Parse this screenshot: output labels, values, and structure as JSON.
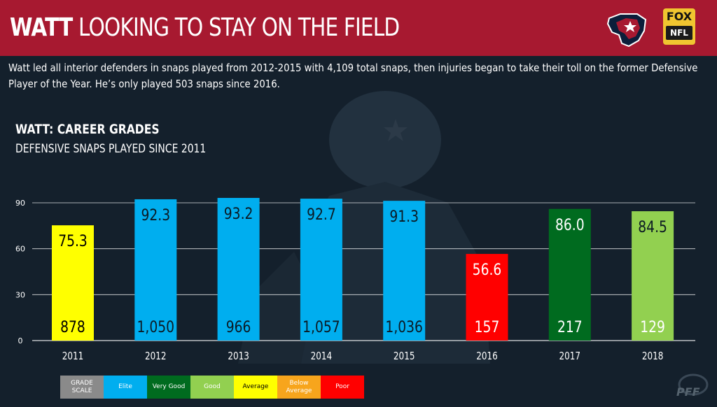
{
  "header": {
    "title_bold": "WATT",
    "title_rest": "LOOKING TO STAY ON THE FIELD",
    "subtitle": "Watt led all interior defenders in snaps played from 2012-2015 with 4,109 total snaps, then injuries began to take their toll on the former Defensive Player of the Year. He’s only played 503 snaps since 2016.",
    "network_logo_top": "FOX",
    "network_logo_bottom": "NFL"
  },
  "chart_data": {
    "type": "bar",
    "title": "WATT: CAREER GRADES",
    "subtitle": "DEFENSIVE SNAPS PLAYED SINCE 2011",
    "categories": [
      "2011",
      "2012",
      "2013",
      "2014",
      "2015",
      "2016",
      "2017",
      "2018"
    ],
    "values": [
      75.3,
      92.3,
      93.2,
      92.7,
      91.3,
      56.6,
      86.0,
      84.5
    ],
    "value_labels": [
      "75.3",
      "92.3",
      "93.2",
      "92.7",
      "91.3",
      "56.6",
      "86.0",
      "84.5"
    ],
    "snaps": [
      "878",
      "1,050",
      "966",
      "1,057",
      "1,036",
      "157",
      "217",
      "129"
    ],
    "bar_colors": [
      "#ffff00",
      "#00aeef",
      "#00aeef",
      "#00aeef",
      "#00aeef",
      "#ff0000",
      "#006b1f",
      "#92d050"
    ],
    "yticks": [
      0,
      30,
      60,
      90
    ],
    "ylim": [
      0,
      95
    ],
    "grid": true
  },
  "legend": [
    {
      "label": "GRADE SCALE",
      "color": "#8a8a8a",
      "text_color": "#ffffff"
    },
    {
      "label": "Elite",
      "color": "#00aeef",
      "text_color": "#ffffff"
    },
    {
      "label": "Very Good",
      "color": "#006b1f",
      "text_color": "#ffffff"
    },
    {
      "label": "Good",
      "color": "#92d050",
      "text_color": "#ffffff"
    },
    {
      "label": "Average",
      "color": "#ffff00",
      "text_color": "#000000"
    },
    {
      "label": "Below Average",
      "color": "#f7a51c",
      "text_color": "#ffffff"
    },
    {
      "label": "Poor",
      "color": "#ff0000",
      "text_color": "#ffffff"
    }
  ],
  "colors": {
    "background": "#14202c",
    "header": "#a71930",
    "grid": "#ffffff"
  }
}
